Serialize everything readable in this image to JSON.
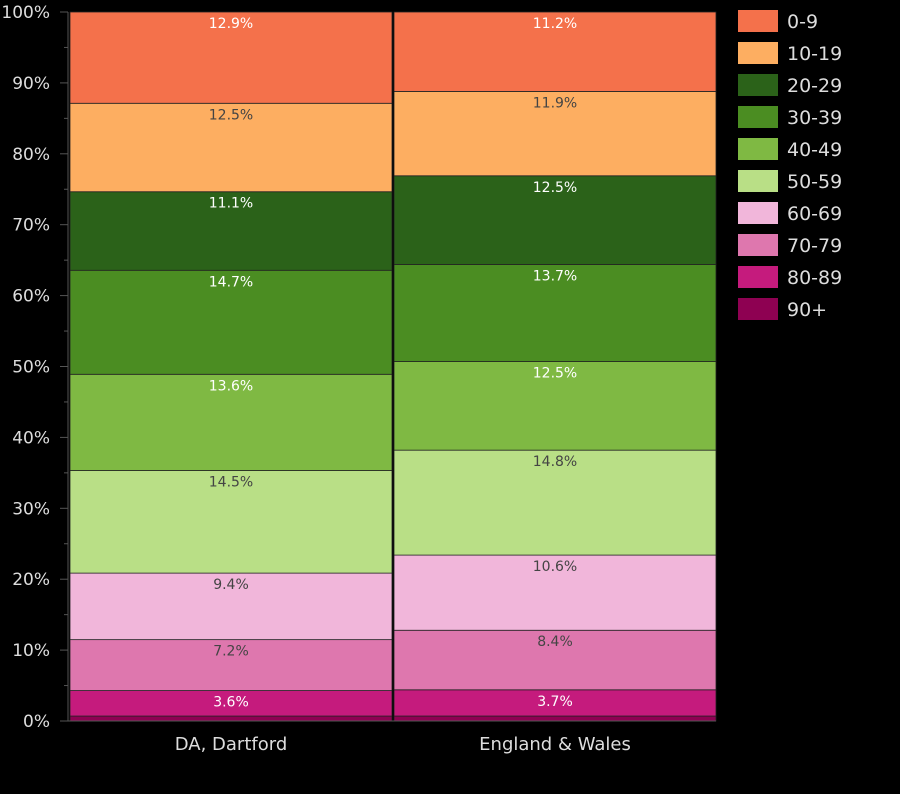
{
  "chart_data": {
    "type": "bar",
    "stacked": true,
    "normalized_percent": true,
    "categories": [
      "DA, Dartford",
      "England & Wales"
    ],
    "series": [
      {
        "name": "0-9",
        "color": "#f4714b",
        "values": [
          12.9,
          11.2
        ],
        "labels": [
          "12.9%",
          "11.2%"
        ]
      },
      {
        "name": "10-19",
        "color": "#fdae61",
        "values": [
          12.5,
          11.9
        ],
        "labels": [
          "12.5%",
          "11.9%"
        ]
      },
      {
        "name": "20-29",
        "color": "#2b6219",
        "values": [
          11.1,
          12.5
        ],
        "labels": [
          "11.1%",
          "12.5%"
        ]
      },
      {
        "name": "30-39",
        "color": "#4b8d22",
        "values": [
          14.7,
          13.7
        ],
        "labels": [
          "14.7%",
          "13.7%"
        ]
      },
      {
        "name": "40-49",
        "color": "#7fb943",
        "values": [
          13.6,
          12.5
        ],
        "labels": [
          "13.6%",
          "12.5%"
        ]
      },
      {
        "name": "50-59",
        "color": "#b9df86",
        "values": [
          14.5,
          14.8
        ],
        "labels": [
          "14.5%",
          "14.8%"
        ]
      },
      {
        "name": "60-69",
        "color": "#f1b6da",
        "values": [
          9.4,
          10.6
        ],
        "labels": [
          "9.4%",
          "10.6%"
        ]
      },
      {
        "name": "70-79",
        "color": "#de77ae",
        "values": [
          7.2,
          8.4
        ],
        "labels": [
          "7.2%",
          "8.4%"
        ]
      },
      {
        "name": "80-89",
        "color": "#c51b7d",
        "values": [
          3.6,
          3.7
        ],
        "labels": [
          "3.6%",
          "3.7%"
        ]
      },
      {
        "name": "90+",
        "color": "#8e0152",
        "values": [
          0.7,
          0.7
        ],
        "labels": [
          "",
          ""
        ]
      }
    ],
    "title": "",
    "xlabel": "",
    "ylabel": "",
    "ylim": [
      0,
      100
    ],
    "yticks": [
      "0%",
      "10%",
      "20%",
      "30%",
      "40%",
      "50%",
      "60%",
      "70%",
      "80%",
      "90%",
      "100%"
    ],
    "grid": false,
    "legend_position": "right"
  }
}
